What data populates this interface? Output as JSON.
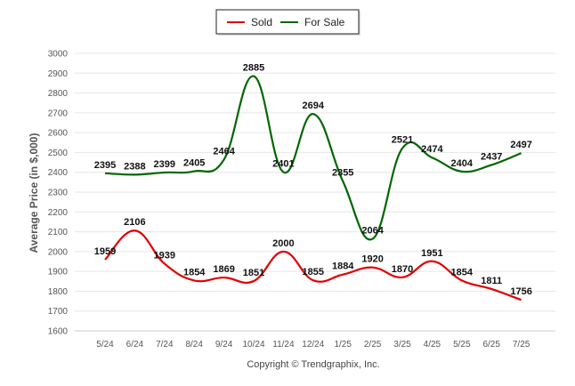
{
  "chart_data": {
    "type": "line",
    "categories": [
      "5/24",
      "6/24",
      "7/24",
      "8/24",
      "9/24",
      "10/24",
      "11/24",
      "12/24",
      "1/25",
      "2/25",
      "3/25",
      "4/25",
      "5/25",
      "6/25",
      "7/25"
    ],
    "series": [
      {
        "name": "Sold",
        "color": "#e00000",
        "values": [
          1959,
          2106,
          1939,
          1854,
          1869,
          1851,
          2000,
          1855,
          1884,
          1920,
          1870,
          1951,
          1854,
          1811,
          1756
        ]
      },
      {
        "name": "For Sale",
        "color": "#006600",
        "values": [
          2395,
          2388,
          2399,
          2405,
          2464,
          2885,
          2401,
          2694,
          2355,
          2064,
          2521,
          2474,
          2404,
          2437,
          2497
        ]
      }
    ],
    "ylabel": "Average Price (in $,000)",
    "ylim": [
      1600,
      3000
    ],
    "yticks": [
      1600,
      1700,
      1800,
      1900,
      2000,
      2100,
      2200,
      2300,
      2400,
      2500,
      2600,
      2700,
      2800,
      2900,
      3000
    ],
    "legend_position": "top-center",
    "grid": true,
    "curve": "smooth"
  },
  "footer": {
    "copyright": "Copyright © Trendgraphix, Inc."
  }
}
